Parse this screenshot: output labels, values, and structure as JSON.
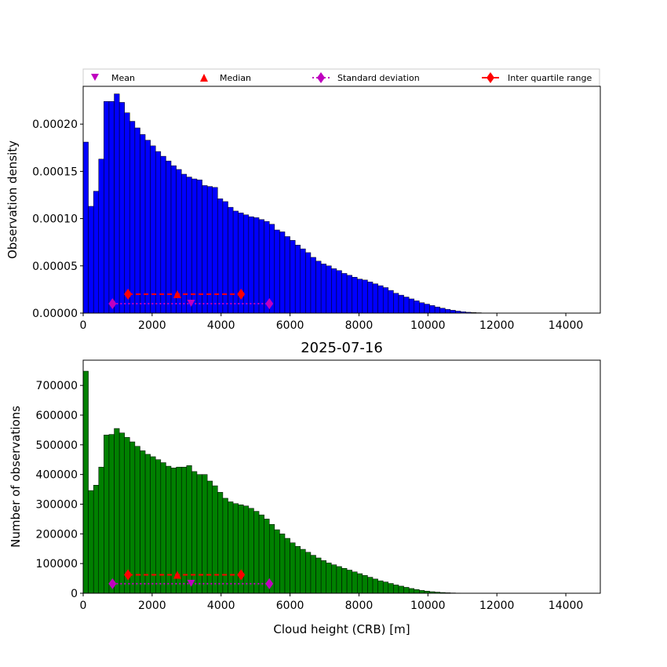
{
  "chart_data": [
    {
      "type": "bar",
      "panel": "top",
      "title": "",
      "xlabel": "",
      "ylabel": "Observation density",
      "xlim": [
        0,
        15000
      ],
      "ylim": [
        0,
        0.00024
      ],
      "bin_width": 150,
      "bar_color": "#0000ff",
      "edge_color": "#000000",
      "x_ticks": [
        "0",
        "2000",
        "4000",
        "6000",
        "8000",
        "10000",
        "12000",
        "14000"
      ],
      "x_tick_values": [
        0,
        2000,
        4000,
        6000,
        8000,
        10000,
        12000,
        14000
      ],
      "y_ticks": [
        "0.00000",
        "0.00005",
        "0.00010",
        "0.00015",
        "0.00020"
      ],
      "y_tick_values": [
        0,
        5e-05,
        0.0001,
        0.00015,
        0.0002
      ],
      "values": [
        0.000181,
        0.000113,
        0.000129,
        0.000163,
        0.000224,
        0.000224,
        0.000232,
        0.000223,
        0.000212,
        0.000203,
        0.000196,
        0.000189,
        0.000183,
        0.000177,
        0.000171,
        0.000166,
        0.000161,
        0.000156,
        0.000152,
        0.000147,
        0.000144,
        0.000142,
        0.000141,
        0.000135,
        0.000134,
        0.000133,
        0.000121,
        0.000118,
        0.000112,
        0.000108,
        0.000106,
        0.000104,
        0.000102,
        0.000101,
        9.9e-05,
        9.7e-05,
        9.4e-05,
        8.8e-05,
        8.6e-05,
        8.1e-05,
        7.7e-05,
        7.2e-05,
        6.8e-05,
        6.4e-05,
        5.9e-05,
        5.5e-05,
        5.2e-05,
        5e-05,
        4.7e-05,
        4.5e-05,
        4.2e-05,
        4e-05,
        3.8e-05,
        3.6e-05,
        3.5e-05,
        3.3e-05,
        3.1e-05,
        2.9e-05,
        2.7e-05,
        2.4e-05,
        2.1e-05,
        1.9e-05,
        1.7e-05,
        1.5e-05,
        1.3e-05,
        1.1e-05,
        9.5e-06,
        8e-06,
        6.5e-06,
        5.2e-06,
        4e-06,
        3e-06,
        2.1e-06,
        1.4e-06,
        9e-07,
        6e-07,
        4e-07,
        2e-07,
        1e-07,
        5e-08
      ],
      "stats": {
        "y_iqr": 2e-05,
        "y_std": 1e-05,
        "y_mean": 1e-05,
        "y_median": 2e-05,
        "mean": 3130,
        "median": 2730,
        "std_low": 850,
        "std_high": 5400,
        "q1": 1300,
        "q3": 4580
      }
    },
    {
      "type": "bar",
      "panel": "bottom",
      "title": "2025-07-16",
      "xlabel": "Cloud height (CRB) [m]",
      "ylabel": "Number of observations",
      "xlim": [
        0,
        15000
      ],
      "ylim": [
        0,
        785000
      ],
      "bin_width": 150,
      "bar_color": "#008000",
      "edge_color": "#000000",
      "x_ticks": [
        "0",
        "2000",
        "4000",
        "6000",
        "8000",
        "10000",
        "12000",
        "14000"
      ],
      "x_tick_values": [
        0,
        2000,
        4000,
        6000,
        8000,
        10000,
        12000,
        14000
      ],
      "y_ticks": [
        "0",
        "100000",
        "200000",
        "300000",
        "400000",
        "500000",
        "600000",
        "700000"
      ],
      "y_tick_values": [
        0,
        100000,
        200000,
        300000,
        400000,
        500000,
        600000,
        700000
      ],
      "values": [
        748000,
        346000,
        364000,
        425000,
        533000,
        535000,
        555000,
        540000,
        525000,
        510000,
        495000,
        480000,
        468000,
        460000,
        450000,
        440000,
        428000,
        422000,
        425000,
        425000,
        430000,
        410000,
        400000,
        400000,
        378000,
        362000,
        340000,
        320000,
        308000,
        302000,
        298000,
        294000,
        286000,
        276000,
        264000,
        250000,
        232000,
        214000,
        200000,
        185000,
        170000,
        158000,
        148000,
        138000,
        128000,
        119000,
        110000,
        102000,
        96000,
        90000,
        84000,
        78000,
        72000,
        66000,
        60000,
        54000,
        48000,
        42000,
        38000,
        33000,
        28000,
        24000,
        20000,
        16000,
        12500,
        9500,
        7200,
        5300,
        3800,
        2600,
        1700,
        1100,
        700,
        400,
        250,
        150,
        100,
        60,
        30,
        15
      ],
      "stats": {
        "y_iqr": 62000,
        "y_std": 32000,
        "y_mean": 32000,
        "y_median": 62000,
        "mean": 3130,
        "median": 2730,
        "std_low": 850,
        "std_high": 5400,
        "q1": 1300,
        "q3": 4580
      }
    }
  ],
  "legend": {
    "mean": "Mean",
    "median": "Median",
    "std": "Standard deviation",
    "iqr": "Inter quartile range",
    "mean_color": "#bf00bf",
    "median_color": "#ff0000",
    "std_color": "#bf00bf",
    "iqr_color": "#ff0000"
  }
}
